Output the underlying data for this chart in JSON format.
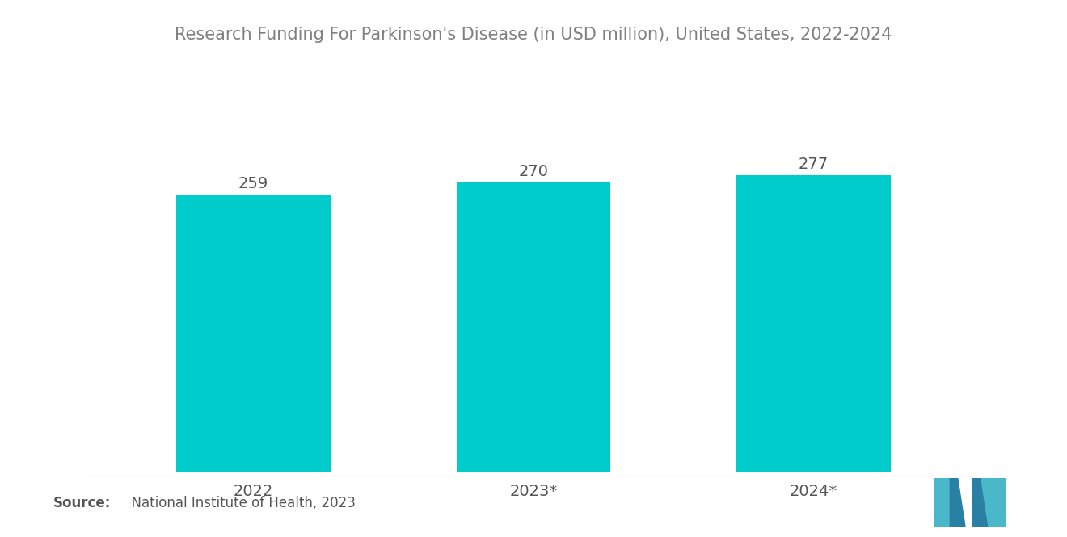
{
  "title": "Research Funding For Parkinson's Disease (in USD million), United States, 2022-2024",
  "categories": [
    "2022",
    "2023*",
    "2024*"
  ],
  "values": [
    259,
    270,
    277
  ],
  "bar_color": "#00CCCC",
  "background_color": "#ffffff",
  "title_color": "#808080",
  "label_color": "#555555",
  "source_bold": "Source:",
  "source_normal": "  National Institute of Health, 2023",
  "title_fontsize": 15,
  "label_fontsize": 14,
  "tick_fontsize": 14,
  "source_fontsize": 12,
  "bar_width": 0.55,
  "ylim": [
    0,
    340
  ],
  "logo_color_light": "#4ab8c8",
  "logo_color_dark": "#2a7fa5"
}
